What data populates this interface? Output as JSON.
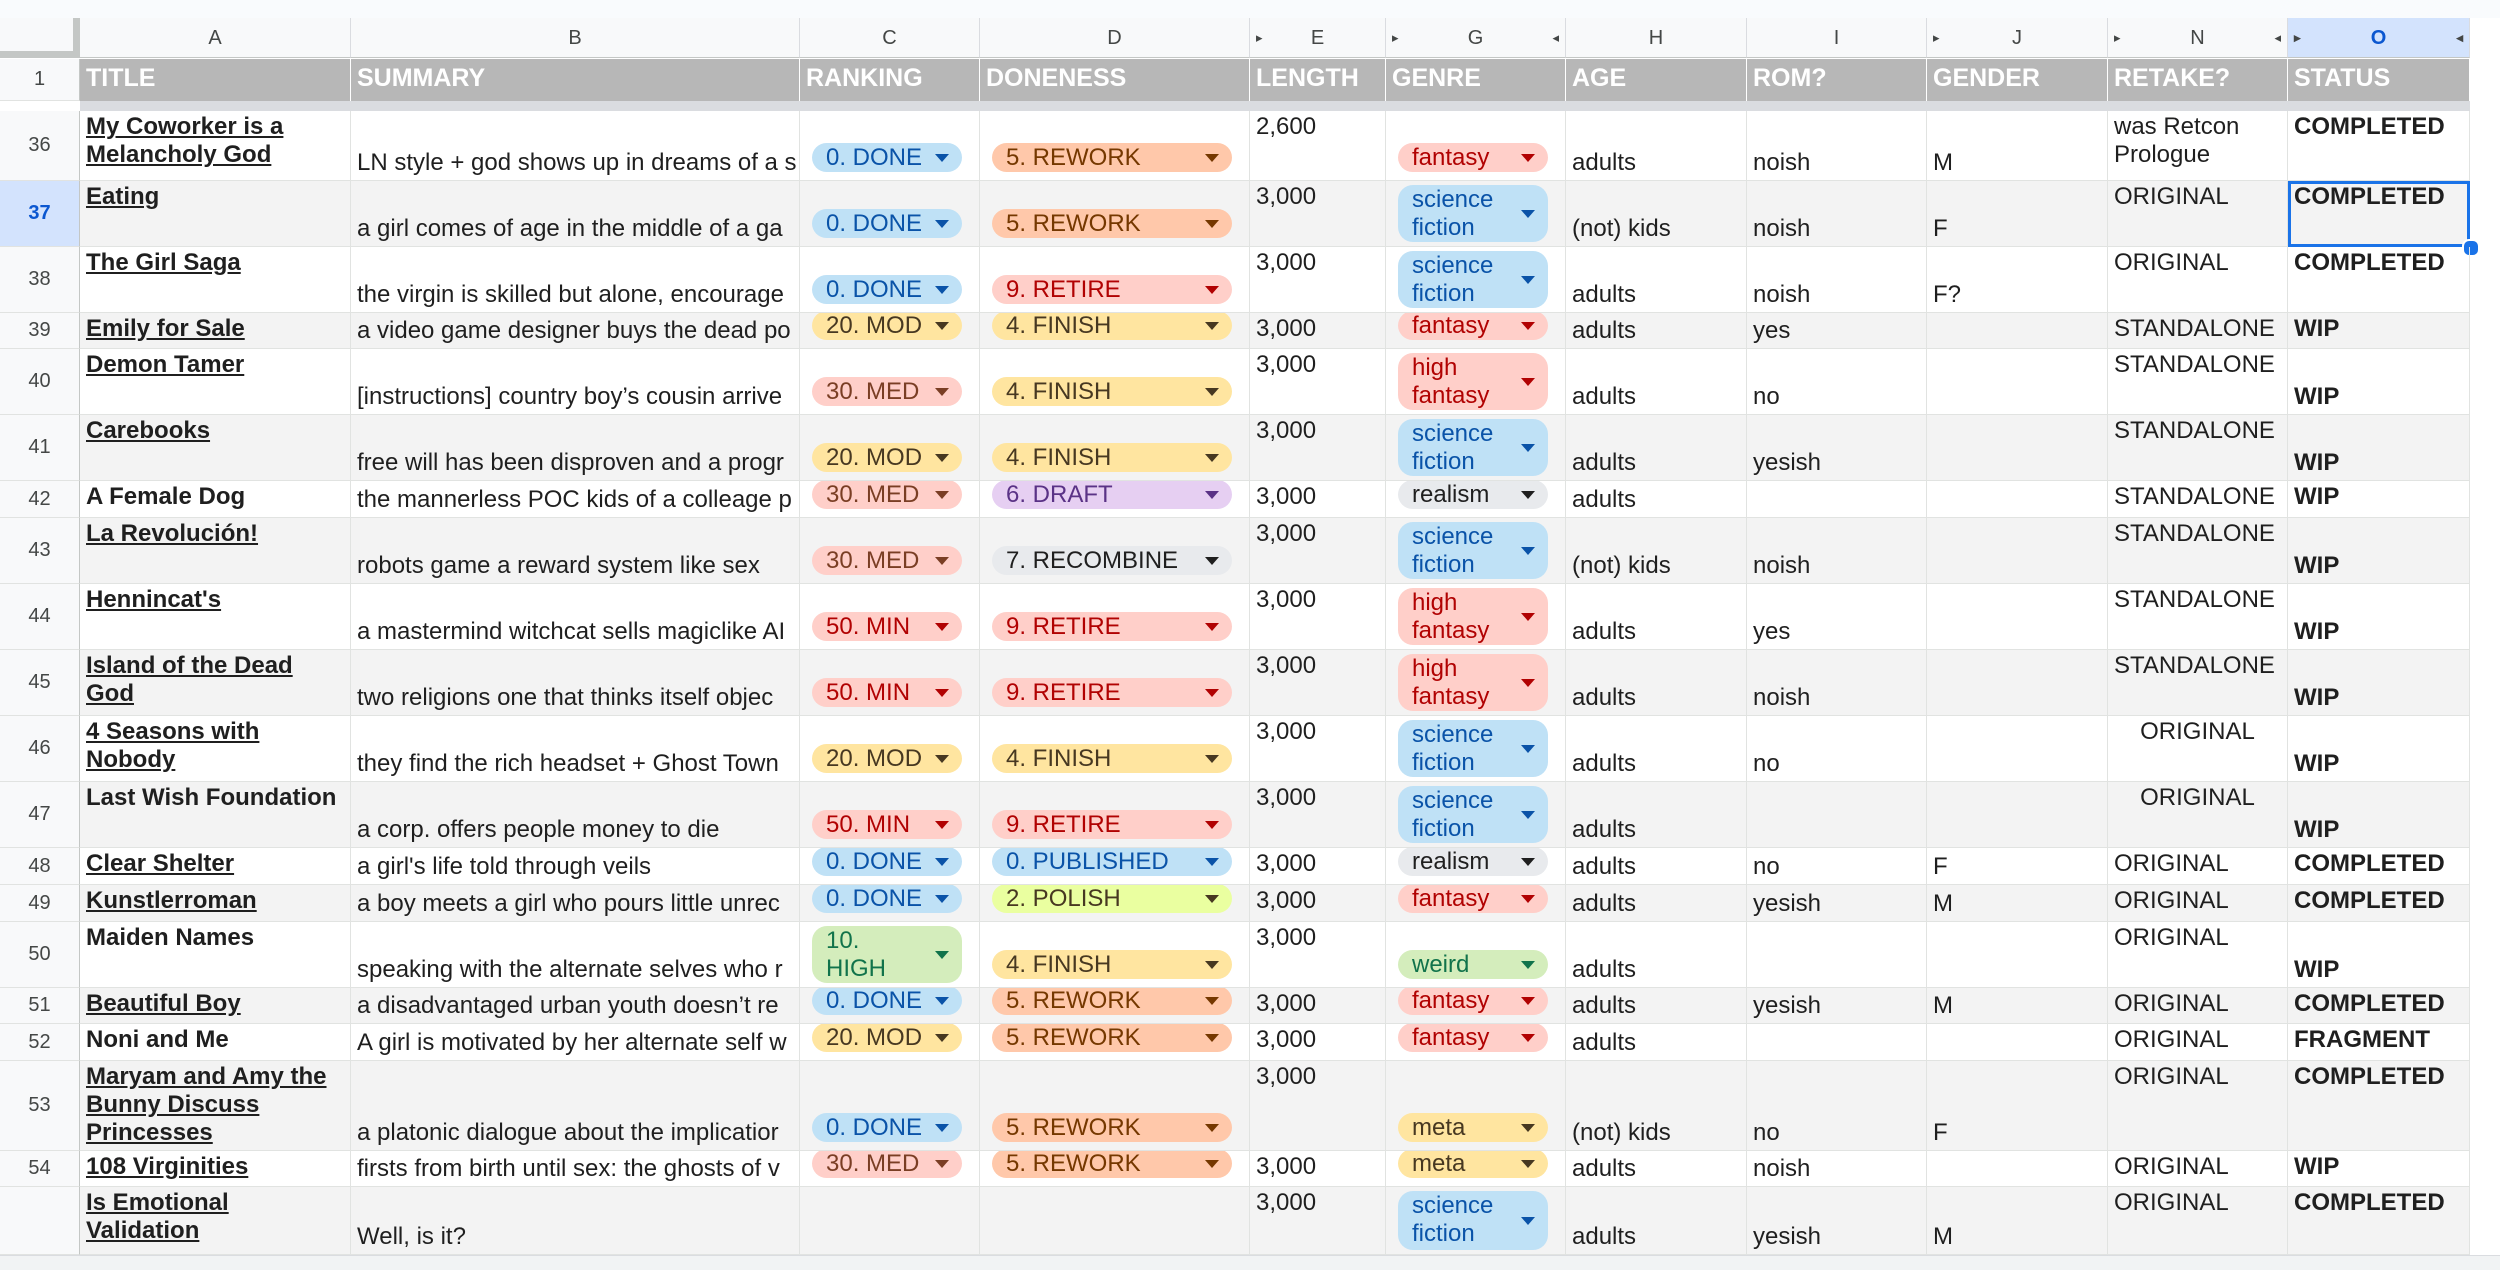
{
  "columns": [
    {
      "letter": "A",
      "label": "TITLE"
    },
    {
      "letter": "B",
      "label": "SUMMARY"
    },
    {
      "letter": "C",
      "label": "RANKING"
    },
    {
      "letter": "D",
      "label": "DONENESS"
    },
    {
      "letter": "E",
      "label": "LENGTH"
    },
    {
      "letter": "G",
      "label": "GENRE"
    },
    {
      "letter": "H",
      "label": "AGE"
    },
    {
      "letter": "I",
      "label": "ROM?"
    },
    {
      "letter": "J",
      "label": "GENDER"
    },
    {
      "letter": "N",
      "label": "RETAKE?"
    },
    {
      "letter": "O",
      "label": "STATUS"
    }
  ],
  "selected": {
    "column": "O",
    "row": "37"
  },
  "header_row_number": "1",
  "chip_colors": {
    "done": {
      "bg": "#bfe1f6",
      "fg": "#0a53a8"
    },
    "mod": {
      "bg": "#ffe5a0",
      "fg": "#473821"
    },
    "med": {
      "bg": "#ffcfc9",
      "fg": "#7a3e24"
    },
    "min": {
      "bg": "#ffcfc9",
      "fg": "#b10202"
    },
    "high": {
      "bg": "#d4edbc",
      "fg": "#11734b"
    },
    "rework": {
      "bg": "#ffc8aa",
      "fg": "#753800"
    },
    "retire": {
      "bg": "#ffcfc9",
      "fg": "#b10202"
    },
    "finish": {
      "bg": "#ffe5a0",
      "fg": "#473821"
    },
    "draft": {
      "bg": "#e6cff2",
      "fg": "#5a3286"
    },
    "recombine": {
      "bg": "#e8eaed",
      "fg": "#1f1f1f"
    },
    "published": {
      "bg": "#bfe1f6",
      "fg": "#0a53a8"
    },
    "polish": {
      "bg": "#eaffa0",
      "fg": "#473821"
    },
    "fantasy": {
      "bg": "#ffcfc9",
      "fg": "#b10202"
    },
    "scifi": {
      "bg": "#bfe1f6",
      "fg": "#0a53a8"
    },
    "highfantasy": {
      "bg": "#ffcfc9",
      "fg": "#b10202"
    },
    "realism": {
      "bg": "#e8eaed",
      "fg": "#1f1f1f"
    },
    "weird": {
      "bg": "#d4edbc",
      "fg": "#11734b"
    },
    "meta": {
      "bg": "#ffe5a0",
      "fg": "#473821"
    }
  },
  "rows": [
    {
      "num": "36",
      "title": "My Coworker is a Melancholy God",
      "summary": "LN style + god shows up in dreams of a s",
      "ranking": "0. DONE",
      "doneness": "5. REWORK",
      "length": "2,600",
      "genre": "fantasy",
      "age": "adults",
      "rom": "noish",
      "gender": "M",
      "retake": "was Retcon Prologue",
      "status": "COMPLETED"
    },
    {
      "num": "37",
      "title": "Eating",
      "summary": "a girl comes of age in the middle of a ga",
      "ranking": "0. DONE",
      "doneness": "5. REWORK",
      "length": "3,000",
      "genre": "science fiction",
      "age": "(not) kids",
      "rom": "noish",
      "gender": "F",
      "retake": "ORIGINAL",
      "status": "COMPLETED"
    },
    {
      "num": "38",
      "title": "The Girl Saga",
      "summary": "the virgin is skilled but alone, encourage",
      "ranking": "0. DONE",
      "doneness": "9. RETIRE",
      "length": "3,000",
      "genre": "science fiction",
      "age": "adults",
      "rom": "noish",
      "gender": "F?",
      "retake": "ORIGINAL",
      "status": "COMPLETED"
    },
    {
      "num": "39",
      "title": "Emily for Sale",
      "summary": "a video game designer buys the dead po",
      "ranking": "20. MOD",
      "doneness": "4. FINISH",
      "length": "3,000",
      "genre": "fantasy",
      "age": "adults",
      "rom": "yes",
      "gender": "",
      "retake": "STANDALONE",
      "status": "WIP"
    },
    {
      "num": "40",
      "title": "Demon Tamer",
      "summary": "[instructions] country boy’s cousin arrive",
      "ranking": "30. MED",
      "doneness": "4. FINISH",
      "length": "3,000",
      "genre": "high fantasy",
      "age": "adults",
      "rom": "no",
      "gender": "",
      "retake": "STANDALONE",
      "status": "WIP"
    },
    {
      "num": "41",
      "title": "Carebooks",
      "summary": "free will has been disproven and a progr",
      "ranking": "20. MOD",
      "doneness": "4. FINISH",
      "length": "3,000",
      "genre": "science fiction",
      "age": "adults",
      "rom": "yesish",
      "gender": "",
      "retake": "STANDALONE",
      "status": "WIP"
    },
    {
      "num": "42",
      "title": "A Female Dog",
      "summary": "the mannerless POC kids of a colleage p",
      "ranking": "30. MED",
      "doneness": "6. DRAFT",
      "length": "3,000",
      "genre": "realism",
      "age": "adults",
      "rom": "",
      "gender": "",
      "retake": "STANDALONE",
      "status": "WIP"
    },
    {
      "num": "43",
      "title": "La Revolución!",
      "summary": "robots game a reward system like sex",
      "ranking": "30. MED",
      "doneness": "7. RECOMBINE",
      "length": "3,000",
      "genre": "science fiction",
      "age": "(not) kids",
      "rom": "noish",
      "gender": "",
      "retake": "STANDALONE",
      "status": "WIP"
    },
    {
      "num": "44",
      "title": "Hennincat's",
      "summary": "a mastermind witchcat sells magiclike AI",
      "ranking": "50. MIN",
      "doneness": "9. RETIRE",
      "length": "3,000",
      "genre": "high fantasy",
      "age": "adults",
      "rom": "yes",
      "gender": "",
      "retake": "STANDALONE",
      "status": "WIP"
    },
    {
      "num": "45",
      "title": "Island of the Dead God",
      "summary": "two religions one that thinks itself objec",
      "ranking": "50. MIN",
      "doneness": "9. RETIRE",
      "length": "3,000",
      "genre": "high fantasy",
      "age": "adults",
      "rom": "noish",
      "gender": "",
      "retake": "STANDALONE",
      "status": "WIP"
    },
    {
      "num": "46",
      "title": "4 Seasons with Nobody",
      "summary": "they find the rich headset + Ghost Town",
      "ranking": "20. MOD",
      "doneness": "4. FINISH",
      "length": "3,000",
      "genre": "science fiction",
      "age": "adults",
      "rom": "no",
      "gender": "",
      "retake": "ORIGINAL",
      "status": "WIP"
    },
    {
      "num": "47",
      "title": "Last Wish Foundation",
      "summary": "a corp. offers people money to die",
      "ranking": "50. MIN",
      "doneness": "9. RETIRE",
      "length": "3,000",
      "genre": "science fiction",
      "age": "adults",
      "rom": "",
      "gender": "",
      "retake": "ORIGINAL",
      "status": "WIP"
    },
    {
      "num": "48",
      "title": "Clear Shelter",
      "summary": "a girl's life told through veils",
      "ranking": "0. DONE",
      "doneness": "0. PUBLISHED",
      "length": "3,000",
      "genre": "realism",
      "age": "adults",
      "rom": "no",
      "gender": "F",
      "retake": "ORIGINAL",
      "status": "COMPLETED"
    },
    {
      "num": "49",
      "title": "Kunstlerroman",
      "summary": "a boy meets a girl who pours little unrec",
      "ranking": "0. DONE",
      "doneness": "2. POLISH",
      "length": "3,000",
      "genre": "fantasy",
      "age": "adults",
      "rom": "yesish",
      "gender": "M",
      "retake": "ORIGINAL",
      "status": "COMPLETED"
    },
    {
      "num": "50",
      "title": "Maiden Names",
      "summary": "speaking with the alternate selves who r",
      "ranking": "10. HIGH",
      "doneness": "4. FINISH",
      "length": "3,000",
      "genre": "weird",
      "age": "adults",
      "rom": "",
      "gender": "",
      "retake": "ORIGINAL",
      "status": "WIP"
    },
    {
      "num": "51",
      "title": "Beautiful Boy",
      "summary": "a disadvantaged urban youth doesn’t re",
      "ranking": "0. DONE",
      "doneness": "5. REWORK",
      "length": "3,000",
      "genre": "fantasy",
      "age": "adults",
      "rom": "yesish",
      "gender": "M",
      "retake": "ORIGINAL",
      "status": "COMPLETED"
    },
    {
      "num": "52",
      "title": "Noni and Me",
      "summary": "A girl is motivated by her alternate self w",
      "ranking": "20. MOD",
      "doneness": "5. REWORK",
      "length": "3,000",
      "genre": "fantasy",
      "age": "adults",
      "rom": "",
      "gender": "",
      "retake": "ORIGINAL",
      "status": "FRAGMENT"
    },
    {
      "num": "53",
      "title": "Maryam and Amy the Bunny Discuss Princesses",
      "summary": "a platonic dialogue about the implicatior",
      "ranking": "0. DONE",
      "doneness": "5. REWORK",
      "length": "3,000",
      "genre": "meta",
      "age": "(not) kids",
      "rom": "no",
      "gender": "F",
      "retake": "ORIGINAL",
      "status": "COMPLETED"
    },
    {
      "num": "54",
      "title": "108 Virginities",
      "summary": "firsts from birth until sex: the ghosts of v",
      "ranking": "30. MED",
      "doneness": "5. REWORK",
      "length": "3,000",
      "genre": "meta",
      "age": "adults",
      "rom": "noish",
      "gender": "",
      "retake": "ORIGINAL",
      "status": "WIP"
    },
    {
      "num": "",
      "title": "Is Emotional Validation",
      "summary": "Well, is it?",
      "ranking": "",
      "doneness": "",
      "length": "3,000",
      "genre": "science fiction",
      "age": "adults",
      "rom": "yesish",
      "gender": "M",
      "retake": "ORIGINAL",
      "status": "COMPLETED"
    }
  ]
}
